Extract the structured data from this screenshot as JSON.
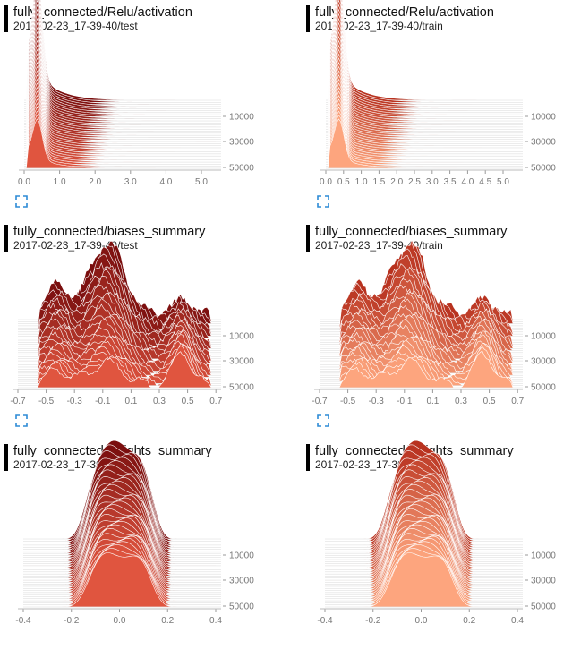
{
  "colors": {
    "test_dark": "#7a0e0e",
    "test_light": "#e0553f",
    "train_dark": "#b8321f",
    "train_light": "#fda57e",
    "expand_icon": "#2d8bd6",
    "header_bar": "#000000"
  },
  "expand_icon": "expand-icon",
  "charts": [
    {
      "title": "fully_connected/Relu/activation",
      "subtitle": "2017-02-23_17-39-40/test",
      "x_ticks": [
        "0.0",
        "1.0",
        "2.0",
        "3.0",
        "4.0",
        "5.0"
      ],
      "y_ticks": [
        "10000",
        "30000",
        "50000"
      ],
      "expand_button": true
    },
    {
      "title": "fully_connected/Relu/activation",
      "subtitle": "2017-02-23_17-39-40/train",
      "x_ticks": [
        "0.0",
        "0.5",
        "1.0",
        "1.5",
        "2.0",
        "2.5",
        "3.0",
        "3.5",
        "4.0",
        "4.5",
        "5.0"
      ],
      "y_ticks": [
        "10000",
        "30000",
        "50000"
      ],
      "expand_button": true
    },
    {
      "title": "fully_connected/biases_summary",
      "subtitle": "2017-02-23_17-39-40/test",
      "x_ticks": [
        "-0.7",
        "-0.5",
        "-0.3",
        "-0.1",
        "0.1",
        "0.3",
        "0.5",
        "0.7"
      ],
      "y_ticks": [
        "10000",
        "30000",
        "50000"
      ],
      "expand_button": true
    },
    {
      "title": "fully_connected/biases_summary",
      "subtitle": "2017-02-23_17-39-40/train",
      "x_ticks": [
        "-0.7",
        "-0.5",
        "-0.3",
        "-0.1",
        "0.1",
        "0.3",
        "0.5",
        "0.7"
      ],
      "y_ticks": [
        "10000",
        "30000",
        "50000"
      ],
      "expand_button": true
    },
    {
      "title": "fully_connected/weights_summary",
      "subtitle": "2017-02-23_17-39-40/test",
      "x_ticks": [
        "-0.4",
        "-0.2",
        "0.0",
        "0.2",
        "0.4"
      ],
      "y_ticks": [
        "10000",
        "30000",
        "50000"
      ],
      "expand_button": false
    },
    {
      "title": "fully_connected/weights_summary",
      "subtitle": "2017-02-23_17-39-40/train",
      "x_ticks": [
        "-0.4",
        "-0.2",
        "0.0",
        "0.2",
        "0.4"
      ],
      "y_ticks": [
        "10000",
        "30000",
        "50000"
      ],
      "expand_button": false
    }
  ]
}
